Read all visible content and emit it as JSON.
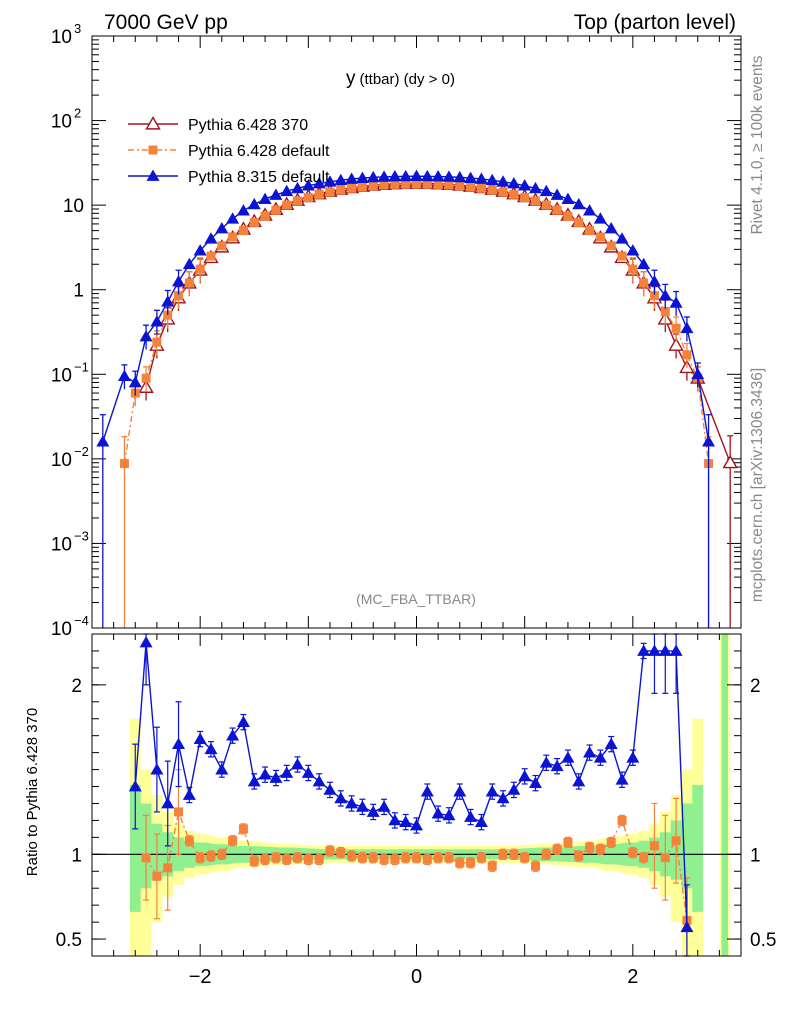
{
  "header": {
    "left": "7000 GeV pp",
    "right": "Top (parton level)"
  },
  "side_labels": {
    "rivet": "Rivet 4.1.0, ≥ 100k events",
    "source": "mcplots.cern.ch [arXiv:1306.3436]"
  },
  "watermark": "(MC_FBA_TTBAR)",
  "colors": {
    "p6_370": "#a0151c",
    "p6_default": "#f5823a",
    "p8": "#0a14d2",
    "band_inner": "#90f090",
    "band_outer": "#ffff99"
  },
  "chart_data": [
    {
      "type": "line",
      "title": "y (ttbar) (dy > 0)",
      "title_main": "y",
      "title_sub": "(ttbar) (dy > 0)",
      "yscale": "log",
      "xlim": [
        -3.0,
        3.0
      ],
      "ylim": [
        0.0001,
        1000
      ],
      "yticks": [
        {
          "v": 0.0001,
          "base": "10",
          "exp": "−4"
        },
        {
          "v": 0.001,
          "base": "10",
          "exp": "−3"
        },
        {
          "v": 0.01,
          "base": "10",
          "exp": "−2"
        },
        {
          "v": 0.1,
          "base": "10",
          "exp": "−1"
        },
        {
          "v": 1,
          "base": "1",
          "exp": ""
        },
        {
          "v": 10,
          "base": "10",
          "exp": ""
        },
        {
          "v": 100,
          "base": "10",
          "exp": "2"
        },
        {
          "v": 1000,
          "base": "10",
          "exp": "3"
        }
      ],
      "legend_position": "top-left",
      "series": [
        {
          "name": "Pythia 6.428 370",
          "color": "#a0151c",
          "marker": "open-triangle",
          "x": [
            -2.5,
            -2.4,
            -2.3,
            -2.2,
            -2.1,
            -2.0,
            -1.9,
            -1.8,
            -1.7,
            -1.6,
            -1.5,
            -1.4,
            -1.3,
            -1.2,
            -1.1,
            -1.0,
            -0.9,
            -0.8,
            -0.7,
            -0.6,
            -0.5,
            -0.4,
            -0.3,
            -0.2,
            -0.1,
            0.0,
            0.1,
            0.2,
            0.3,
            0.4,
            0.5,
            0.6,
            0.7,
            0.8,
            0.9,
            1.0,
            1.1,
            1.2,
            1.3,
            1.4,
            1.5,
            1.6,
            1.7,
            1.8,
            1.9,
            2.0,
            2.1,
            2.2,
            2.3,
            2.4,
            2.5,
            2.6,
            2.9
          ],
          "y": [
            0.07,
            0.22,
            0.45,
            0.8,
            1.2,
            1.7,
            2.4,
            3.2,
            4.1,
            5.2,
            6.4,
            7.6,
            8.9,
            10.2,
            11.4,
            12.6,
            13.6,
            14.6,
            15.4,
            16.1,
            16.7,
            17.2,
            17.6,
            17.9,
            18.1,
            18.2,
            18.1,
            17.9,
            17.6,
            17.2,
            16.7,
            16.1,
            15.4,
            14.6,
            13.6,
            12.6,
            11.4,
            10.2,
            8.9,
            7.6,
            6.4,
            5.2,
            4.1,
            3.2,
            2.4,
            1.7,
            1.2,
            0.8,
            0.45,
            0.22,
            0.12,
            0.09,
            0.009
          ]
        },
        {
          "name": "Pythia 6.428 default",
          "color": "#f5823a",
          "marker": "filled-square",
          "x": [
            -2.7,
            -2.6,
            -2.5,
            -2.4,
            -2.3,
            -2.2,
            -2.1,
            -2.0,
            -1.9,
            -1.8,
            -1.7,
            -1.6,
            -1.5,
            -1.4,
            -1.3,
            -1.2,
            -1.1,
            -1.0,
            -0.9,
            -0.8,
            -0.7,
            -0.6,
            -0.5,
            -0.4,
            -0.3,
            -0.2,
            -0.1,
            0.0,
            0.1,
            0.2,
            0.3,
            0.4,
            0.5,
            0.6,
            0.7,
            0.8,
            0.9,
            1.0,
            1.1,
            1.2,
            1.3,
            1.4,
            1.5,
            1.6,
            1.7,
            1.8,
            1.9,
            2.0,
            2.1,
            2.2,
            2.3,
            2.4,
            2.5,
            2.6,
            2.7
          ],
          "y": [
            0.0088,
            0.06,
            0.09,
            0.24,
            0.5,
            0.85,
            1.2,
            1.75,
            2.5,
            3.3,
            4.2,
            5.0,
            6.2,
            7.4,
            8.7,
            10.0,
            11.2,
            12.3,
            13.4,
            14.3,
            15.1,
            15.8,
            16.4,
            16.9,
            17.3,
            17.6,
            17.8,
            17.9,
            17.8,
            17.6,
            17.3,
            16.9,
            16.4,
            15.8,
            15.1,
            14.3,
            13.4,
            12.3,
            11.2,
            10.0,
            8.7,
            7.4,
            6.2,
            5.0,
            4.2,
            3.3,
            2.5,
            1.75,
            1.2,
            0.85,
            0.55,
            0.35,
            0.17,
            0.09,
            0.0088
          ]
        },
        {
          "name": "Pythia 8.315 default",
          "color": "#0a14d2",
          "marker": "filled-triangle",
          "x": [
            -2.9,
            -2.7,
            -2.6,
            -2.5,
            -2.4,
            -2.3,
            -2.2,
            -2.1,
            -2.0,
            -1.9,
            -1.8,
            -1.7,
            -1.6,
            -1.5,
            -1.4,
            -1.3,
            -1.2,
            -1.1,
            -1.0,
            -0.9,
            -0.8,
            -0.7,
            -0.6,
            -0.5,
            -0.4,
            -0.3,
            -0.2,
            -0.1,
            0.0,
            0.1,
            0.2,
            0.3,
            0.4,
            0.5,
            0.6,
            0.7,
            0.8,
            0.9,
            1.0,
            1.1,
            1.2,
            1.3,
            1.4,
            1.5,
            1.6,
            1.7,
            1.8,
            1.9,
            2.0,
            2.1,
            2.2,
            2.3,
            2.4,
            2.5,
            2.6,
            2.7
          ],
          "y": [
            0.016,
            0.095,
            0.08,
            0.28,
            0.42,
            0.72,
            1.25,
            2.0,
            2.9,
            4.0,
            5.3,
            6.9,
            8.6,
            10.2,
            11.8,
            13.2,
            14.6,
            15.8,
            17.0,
            18.0,
            18.9,
            19.7,
            20.4,
            20.9,
            21.3,
            21.6,
            21.8,
            21.9,
            22.0,
            21.9,
            21.8,
            21.6,
            21.3,
            20.9,
            20.4,
            19.7,
            18.9,
            18.0,
            17.0,
            15.8,
            14.6,
            13.2,
            11.8,
            10.2,
            8.6,
            6.9,
            5.3,
            4.0,
            2.9,
            2.0,
            1.25,
            0.85,
            0.7,
            0.35,
            0.1,
            0.016
          ]
        }
      ]
    },
    {
      "type": "line",
      "title": "Ratio to Pythia 6.428 370",
      "ylabel": "Ratio to Pythia 6.428 370",
      "xlim": [
        -3.0,
        3.0
      ],
      "ylim": [
        0.4,
        2.3
      ],
      "xticks": [
        {
          "v": -2,
          "label": "−2"
        },
        {
          "v": 0,
          "label": "0"
        },
        {
          "v": 2,
          "label": "2"
        }
      ],
      "yticks": [
        {
          "v": 0.5,
          "label": "0.5"
        },
        {
          "v": 1,
          "label": "1"
        },
        {
          "v": 2,
          "label": "2"
        }
      ],
      "reference_line": 1,
      "series": [
        {
          "name": "Pythia 6.428 default",
          "color": "#f5823a",
          "marker": "filled-square",
          "x": [
            -2.5,
            -2.4,
            -2.3,
            -2.2,
            -2.1,
            -2.0,
            -1.9,
            -1.8,
            -1.7,
            -1.6,
            -1.5,
            -1.4,
            -1.3,
            -1.2,
            -1.1,
            -1.0,
            -0.9,
            -0.8,
            -0.7,
            -0.6,
            -0.5,
            -0.4,
            -0.3,
            -0.2,
            -0.1,
            0.0,
            0.1,
            0.2,
            0.3,
            0.4,
            0.5,
            0.6,
            0.7,
            0.8,
            0.9,
            1.0,
            1.1,
            1.2,
            1.3,
            1.4,
            1.5,
            1.6,
            1.7,
            1.8,
            1.9,
            2.0,
            2.1,
            2.2,
            2.3,
            2.4,
            2.5
          ],
          "y": [
            0.98,
            0.87,
            0.92,
            1.25,
            1.08,
            0.98,
            0.99,
            1.0,
            1.08,
            1.15,
            0.96,
            0.97,
            0.98,
            0.97,
            0.98,
            0.97,
            0.97,
            1.02,
            1.01,
            0.99,
            0.98,
            0.98,
            0.97,
            0.97,
            0.98,
            0.98,
            0.97,
            0.98,
            0.98,
            0.95,
            0.95,
            0.98,
            0.93,
            1.0,
            1.0,
            0.98,
            0.93,
            1.0,
            1.03,
            1.07,
            0.99,
            1.04,
            1.03,
            1.07,
            1.2,
            1.01,
            0.98,
            1.05,
            0.98,
            1.08,
            0.61
          ]
        },
        {
          "name": "Pythia 8.315 default",
          "color": "#0a14d2",
          "marker": "filled-triangle",
          "x": [
            -2.6,
            -2.5,
            -2.4,
            -2.3,
            -2.2,
            -2.1,
            -2.0,
            -1.9,
            -1.8,
            -1.7,
            -1.6,
            -1.5,
            -1.4,
            -1.3,
            -1.2,
            -1.1,
            -1.0,
            -0.9,
            -0.8,
            -0.7,
            -0.6,
            -0.5,
            -0.4,
            -0.3,
            -0.2,
            -0.1,
            0.0,
            0.1,
            0.2,
            0.3,
            0.4,
            0.5,
            0.6,
            0.7,
            0.8,
            0.9,
            1.0,
            1.1,
            1.2,
            1.3,
            1.4,
            1.5,
            1.6,
            1.7,
            1.8,
            1.9,
            2.0,
            2.1,
            2.2,
            2.3,
            2.4,
            2.5
          ],
          "y": [
            1.4,
            2.25,
            1.5,
            1.3,
            1.65,
            1.35,
            1.68,
            1.62,
            1.5,
            1.7,
            1.78,
            1.43,
            1.47,
            1.45,
            1.48,
            1.53,
            1.48,
            1.43,
            1.38,
            1.33,
            1.3,
            1.28,
            1.25,
            1.28,
            1.2,
            1.19,
            1.17,
            1.37,
            1.24,
            1.23,
            1.37,
            1.22,
            1.19,
            1.37,
            1.33,
            1.38,
            1.46,
            1.42,
            1.54,
            1.52,
            1.57,
            1.43,
            1.6,
            1.57,
            1.65,
            1.44,
            1.57,
            2.2,
            2.2,
            2.2,
            2.2,
            0.57
          ]
        }
      ],
      "band_inner": [
        [
          -2.6,
          0.66,
          1.41
        ],
        [
          -2.5,
          0.8,
          1.3
        ],
        [
          -2.4,
          0.85,
          1.18
        ],
        [
          -2.3,
          0.87,
          1.13
        ],
        [
          -2.2,
          0.9,
          1.1
        ],
        [
          -2.1,
          0.92,
          1.08
        ],
        [
          -2.0,
          0.93,
          1.07
        ],
        [
          -1.8,
          0.94,
          1.06
        ],
        [
          -1.6,
          0.95,
          1.05
        ],
        [
          -1.2,
          0.96,
          1.04
        ],
        [
          -0.8,
          0.97,
          1.03
        ],
        [
          0.8,
          0.97,
          1.03
        ],
        [
          1.2,
          0.96,
          1.04
        ],
        [
          1.6,
          0.95,
          1.05
        ],
        [
          1.8,
          0.94,
          1.06
        ],
        [
          2.0,
          0.93,
          1.07
        ],
        [
          2.1,
          0.92,
          1.08
        ],
        [
          2.2,
          0.9,
          1.1
        ],
        [
          2.3,
          0.87,
          1.13
        ],
        [
          2.4,
          0.85,
          1.2
        ],
        [
          2.5,
          0.8,
          1.3
        ],
        [
          2.6,
          0.66,
          1.41
        ]
      ],
      "band_outer": [
        [
          -2.6,
          0.35,
          1.8
        ],
        [
          -2.5,
          0.4,
          1.5
        ],
        [
          -2.4,
          0.6,
          1.35
        ],
        [
          -2.3,
          0.75,
          1.25
        ],
        [
          -2.2,
          0.82,
          1.18
        ],
        [
          -2.1,
          0.86,
          1.14
        ],
        [
          -2.0,
          0.88,
          1.12
        ],
        [
          -1.8,
          0.9,
          1.1
        ],
        [
          -1.6,
          0.92,
          1.08
        ],
        [
          -1.2,
          0.94,
          1.06
        ],
        [
          -0.8,
          0.95,
          1.05
        ],
        [
          0.8,
          0.95,
          1.05
        ],
        [
          1.2,
          0.94,
          1.06
        ],
        [
          1.6,
          0.92,
          1.08
        ],
        [
          1.8,
          0.9,
          1.1
        ],
        [
          2.0,
          0.88,
          1.12
        ],
        [
          2.1,
          0.86,
          1.14
        ],
        [
          2.2,
          0.82,
          1.18
        ],
        [
          2.3,
          0.75,
          1.25
        ],
        [
          2.4,
          0.6,
          1.35
        ],
        [
          2.5,
          0.4,
          1.5
        ],
        [
          2.6,
          0.35,
          1.8
        ]
      ]
    }
  ]
}
